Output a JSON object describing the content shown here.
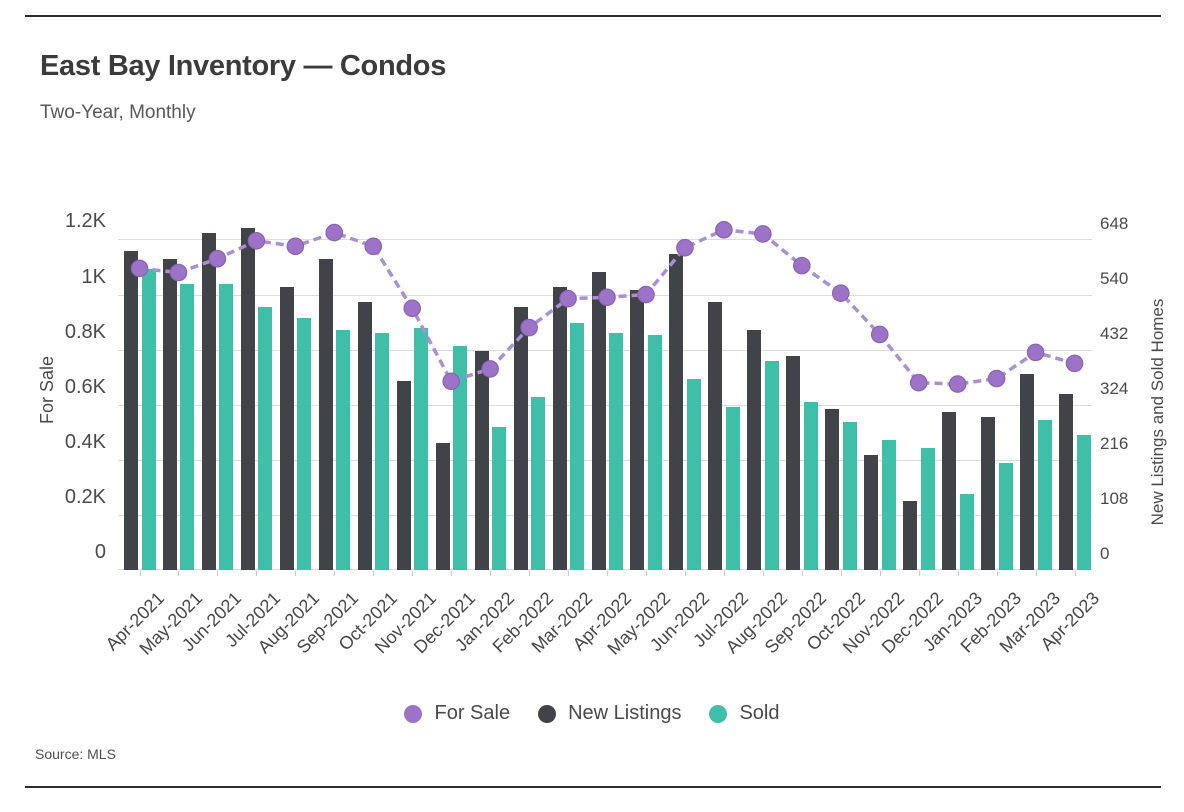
{
  "page": {
    "title": "East Bay Inventory — Condos",
    "subtitle": "Two-Year, Monthly",
    "source": "Source:  MLS"
  },
  "colors": {
    "for_sale_line": "#a98fd3",
    "for_sale_marker": "#9c73c6",
    "for_sale_marker_edge": "#8a61b4",
    "new_listings_bar": "#404347",
    "sold_bar": "#3fbfa7",
    "gridline": "#dcdcdc",
    "tick_text": "#4a4a4a",
    "rule": "#2b2b2b"
  },
  "legend": [
    {
      "label": "For Sale",
      "color": "#9c73c6"
    },
    {
      "label": "New Listings",
      "color": "#404347"
    },
    {
      "label": "Sold",
      "color": "#3fbfa7"
    }
  ],
  "chart_data": {
    "type": "bar",
    "subtype": "grouped-bars-with-line-overlay",
    "title": "East Bay Inventory — Condos",
    "subtitle": "Two-Year, Monthly",
    "grid": true,
    "legend_position": "bottom",
    "categories": [
      "Apr-2021",
      "May-2021",
      "Jun-2021",
      "Jul-2021",
      "Aug-2021",
      "Sep-2021",
      "Oct-2021",
      "Nov-2021",
      "Dec-2021",
      "Jan-2022",
      "Feb-2022",
      "Mar-2022",
      "Apr-2022",
      "May-2022",
      "Jun-2022",
      "Jul-2022",
      "Aug-2022",
      "Sep-2022",
      "Oct-2022",
      "Nov-2022",
      "Dec-2022",
      "Jan-2023",
      "Feb-2023",
      "Mar-2023",
      "Apr-2023"
    ],
    "series": [
      {
        "name": "For Sale",
        "type": "line",
        "style": "dashed-with-round-markers",
        "axis": "left",
        "values": [
          1095,
          1080,
          1130,
          1195,
          1175,
          1225,
          1175,
          950,
          685,
          730,
          880,
          985,
          990,
          1000,
          1170,
          1235,
          1220,
          1105,
          1005,
          855,
          680,
          675,
          695,
          790,
          750
        ]
      },
      {
        "name": "New Listings",
        "type": "bar",
        "axis": "right",
        "values": [
          625,
          610,
          660,
          670,
          555,
          610,
          525,
          370,
          250,
          430,
          515,
          555,
          585,
          550,
          620,
          525,
          470,
          420,
          315,
          225,
          135,
          310,
          300,
          385,
          345
        ]
      },
      {
        "name": "Sold",
        "type": "bar",
        "axis": "right",
        "values": [
          590,
          560,
          560,
          515,
          495,
          470,
          465,
          475,
          440,
          280,
          340,
          485,
          465,
          460,
          375,
          320,
          410,
          330,
          290,
          255,
          240,
          150,
          210,
          295,
          265
        ]
      }
    ],
    "left_axis": {
      "label": "For Sale",
      "plot_max": 1296,
      "ticks": [
        {
          "label": "1.2K",
          "value": 1200
        },
        {
          "label": "1K",
          "value": 1000
        },
        {
          "label": "0.8K",
          "value": 800
        },
        {
          "label": "0.6K",
          "value": 600
        },
        {
          "label": "0.4K",
          "value": 400
        },
        {
          "label": "0.2K",
          "value": 200
        },
        {
          "label": "0",
          "value": 0
        }
      ]
    },
    "right_axis": {
      "label": "New Listings and Sold Homes",
      "plot_max": 700,
      "ticks": [
        {
          "label": "648",
          "value": 648
        },
        {
          "label": "540",
          "value": 540
        },
        {
          "label": "432",
          "value": 432
        },
        {
          "label": "324",
          "value": 324
        },
        {
          "label": "216",
          "value": 216
        },
        {
          "label": "108",
          "value": 108
        },
        {
          "label": "0",
          "value": 0
        }
      ]
    }
  }
}
